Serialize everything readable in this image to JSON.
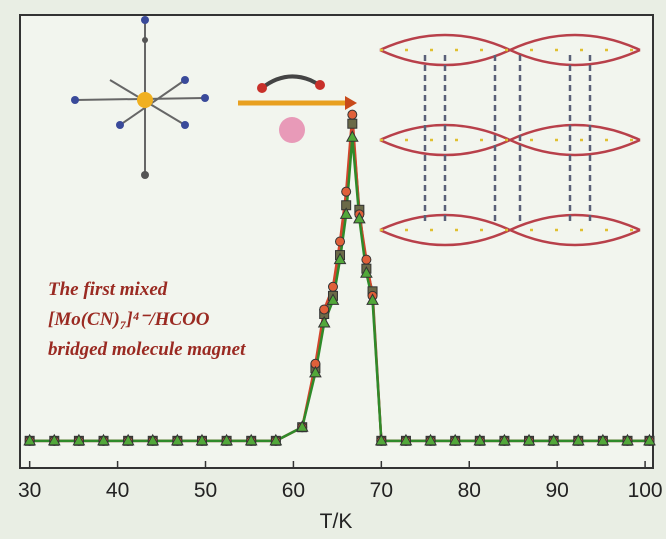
{
  "chart_data": {
    "type": "line",
    "x_label": "T/K",
    "annotations": [
      "The first mixed",
      "[Mo(CN)₇]⁴⁻/HCOO",
      "bridged molecule magnet"
    ],
    "x": [
      30,
      32.8,
      35.6,
      38.4,
      41.2,
      44,
      46.8,
      49.6,
      52.4,
      55.2,
      58,
      61,
      62.5,
      63.5,
      64.5,
      65.3,
      66,
      66.7,
      67.5,
      68.3,
      69,
      70,
      72.8,
      75.6,
      78.4,
      81.2,
      84,
      86.8,
      89.6,
      92.4,
      95.2,
      98,
      100.5
    ],
    "series": [
      {
        "color": "#6b6a48",
        "line_color": "#6b6a48",
        "marker": "square",
        "values": [
          0,
          0,
          0,
          0,
          0,
          0,
          0,
          0,
          0,
          0,
          0,
          0.03,
          0.16,
          0.28,
          0.32,
          0.41,
          0.52,
          0.7,
          0.51,
          0.38,
          0.33,
          0,
          0,
          0,
          0,
          0,
          0,
          0,
          0,
          0,
          0,
          0,
          0
        ]
      },
      {
        "color": "#e0603a",
        "line_color": "#d2452c",
        "marker": "circle",
        "values": [
          0,
          0,
          0,
          0,
          0,
          0,
          0,
          0,
          0,
          0,
          0,
          0.03,
          0.17,
          0.29,
          0.34,
          0.44,
          0.55,
          0.72,
          0.5,
          0.4,
          0.32,
          0,
          0,
          0,
          0,
          0,
          0,
          0,
          0,
          0,
          0,
          0,
          0
        ]
      },
      {
        "color": "#52a83a",
        "line_color": "#2f8a2a",
        "marker": "triangle",
        "values": [
          0,
          0,
          0,
          0,
          0,
          0,
          0,
          0,
          0,
          0,
          0,
          0.03,
          0.15,
          0.26,
          0.31,
          0.4,
          0.5,
          0.67,
          0.49,
          0.37,
          0.31,
          0,
          0,
          0,
          0,
          0,
          0,
          0,
          0,
          0,
          0,
          0,
          0
        ]
      }
    ],
    "xlim": [
      28.9,
      100.9
    ],
    "xticks": [
      30,
      40,
      50,
      60,
      70,
      80,
      90,
      100
    ],
    "ylim": [
      -0.06,
      0.94
    ]
  }
}
